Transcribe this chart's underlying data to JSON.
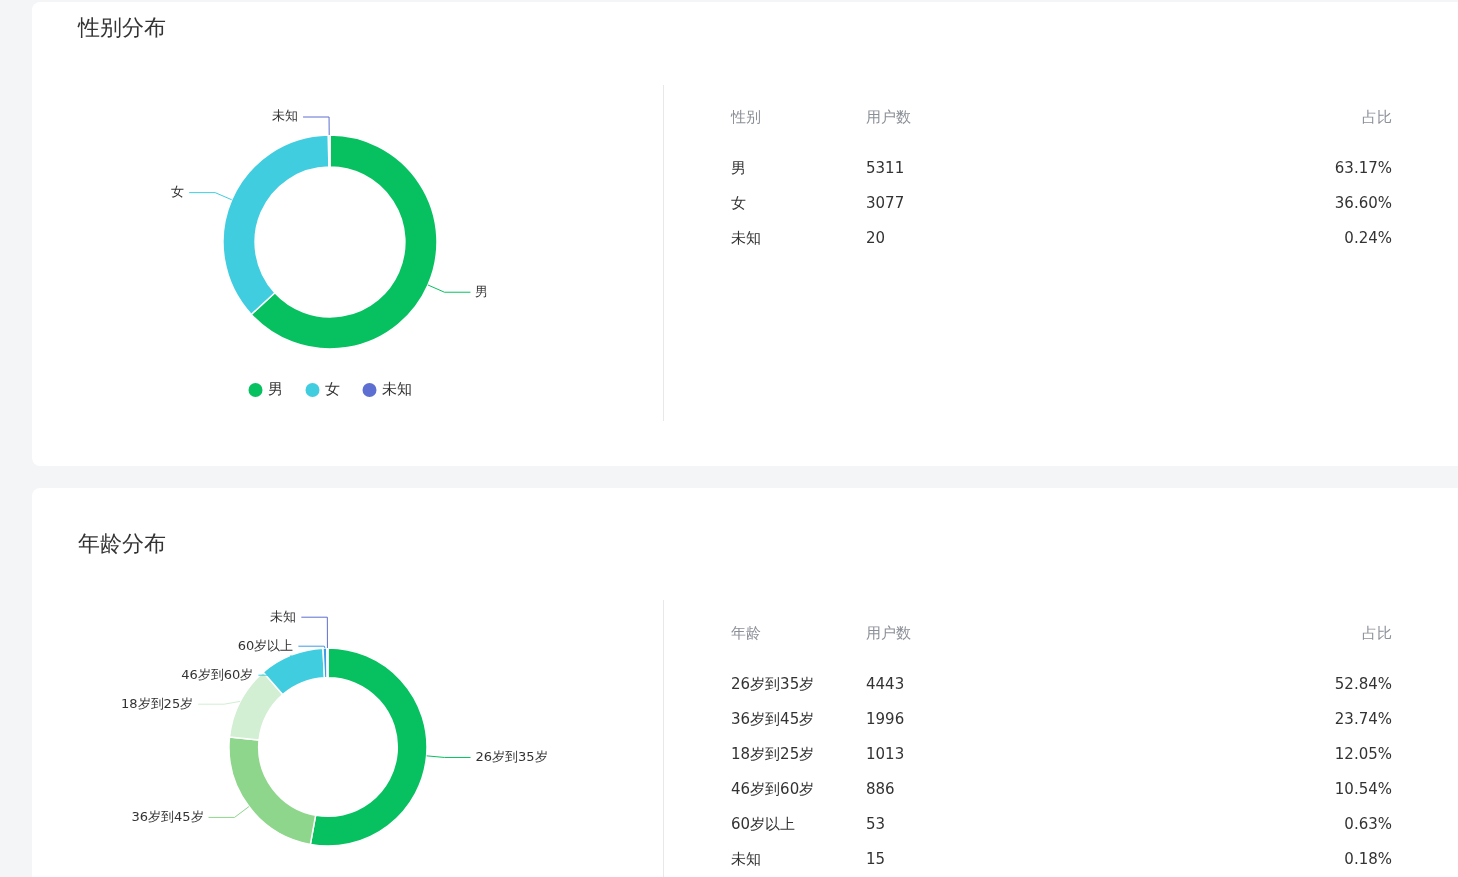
{
  "chart_data": [
    {
      "type": "donut",
      "title": "性别分布",
      "categories": [
        "男",
        "女",
        "未知"
      ],
      "values": [
        63.17,
        36.6,
        0.24
      ],
      "colors": [
        "#07c160",
        "#40cde0",
        "#5d6fd1"
      ],
      "legend": "bottom"
    },
    {
      "type": "other",
      "annotations": [
        "性别",
        "用户数",
        "占比",
        "男",
        "5311",
        "63.17%",
        "女",
        "3077",
        "36.60%",
        "未知",
        "20",
        "0.24%"
      ]
    },
    {
      "type": "donut",
      "title": "年龄分布",
      "categories": [
        "26岁到35岁",
        "36岁到45岁",
        "18岁到25岁",
        "46岁到60岁",
        "60岁以上",
        "未知"
      ],
      "values": [
        52.84,
        23.74,
        12.05,
        10.54,
        0.63,
        0.18
      ],
      "colors": [
        "#07c160",
        "#8ed68c",
        "#d2eed3",
        "#40cde0",
        "#3e9be8",
        "#5d6fd1"
      ]
    },
    {
      "type": "other",
      "annotations": [
        "年龄",
        "用户数",
        "占比",
        "26岁到35岁",
        "4443",
        "52.84%",
        "36岁到45岁",
        "1996",
        "23.74%",
        "18岁到25岁",
        "1013",
        "12.05%",
        "46岁到60岁",
        "886",
        "10.54%",
        "60岁以上",
        "53",
        "0.63%",
        "未知",
        "15",
        "0.18%"
      ]
    }
  ]
}
